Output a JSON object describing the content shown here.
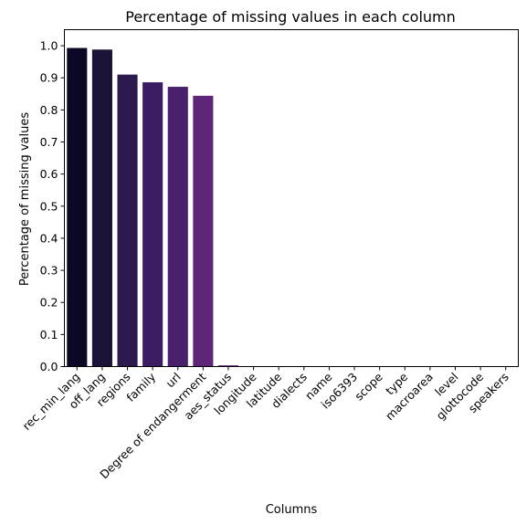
{
  "chart_data": {
    "type": "bar",
    "title": "Percentage of missing values in each column",
    "xlabel": "Columns",
    "ylabel": "Percentage of missing values",
    "ylim": [
      0,
      1.05
    ],
    "yticks": [
      "0.0",
      "0.1",
      "0.2",
      "0.3",
      "0.4",
      "0.5",
      "0.6",
      "0.7",
      "0.8",
      "0.9",
      "1.0"
    ],
    "grid": false,
    "legend": "none",
    "categories": [
      "rec_min_lang",
      "off_lang",
      "regions",
      "family",
      "url",
      "Degree of endangerment",
      "aes_status",
      "longitude",
      "latitude",
      "dialects",
      "name",
      "iso6393",
      "scope",
      "type",
      "macroarea",
      "level",
      "glottocode",
      "speakers"
    ],
    "values": [
      0.993,
      0.988,
      0.91,
      0.886,
      0.872,
      0.844,
      0.004,
      0,
      0,
      0,
      0,
      0,
      0,
      0,
      0,
      0,
      0,
      0
    ],
    "colors": [
      "#0b0826",
      "#1b1238",
      "#2c1a4f",
      "#3b1c63",
      "#4a1f6e",
      "#5f2578",
      "#6d2a7f",
      "#7a2d81",
      "#8a3384",
      "#9b3a86",
      "#ad3f85",
      "#bf4683",
      "#d14e7e",
      "#df5b75",
      "#ea6a6d",
      "#f07f66",
      "#f59562",
      "#f8ab5f"
    ]
  }
}
